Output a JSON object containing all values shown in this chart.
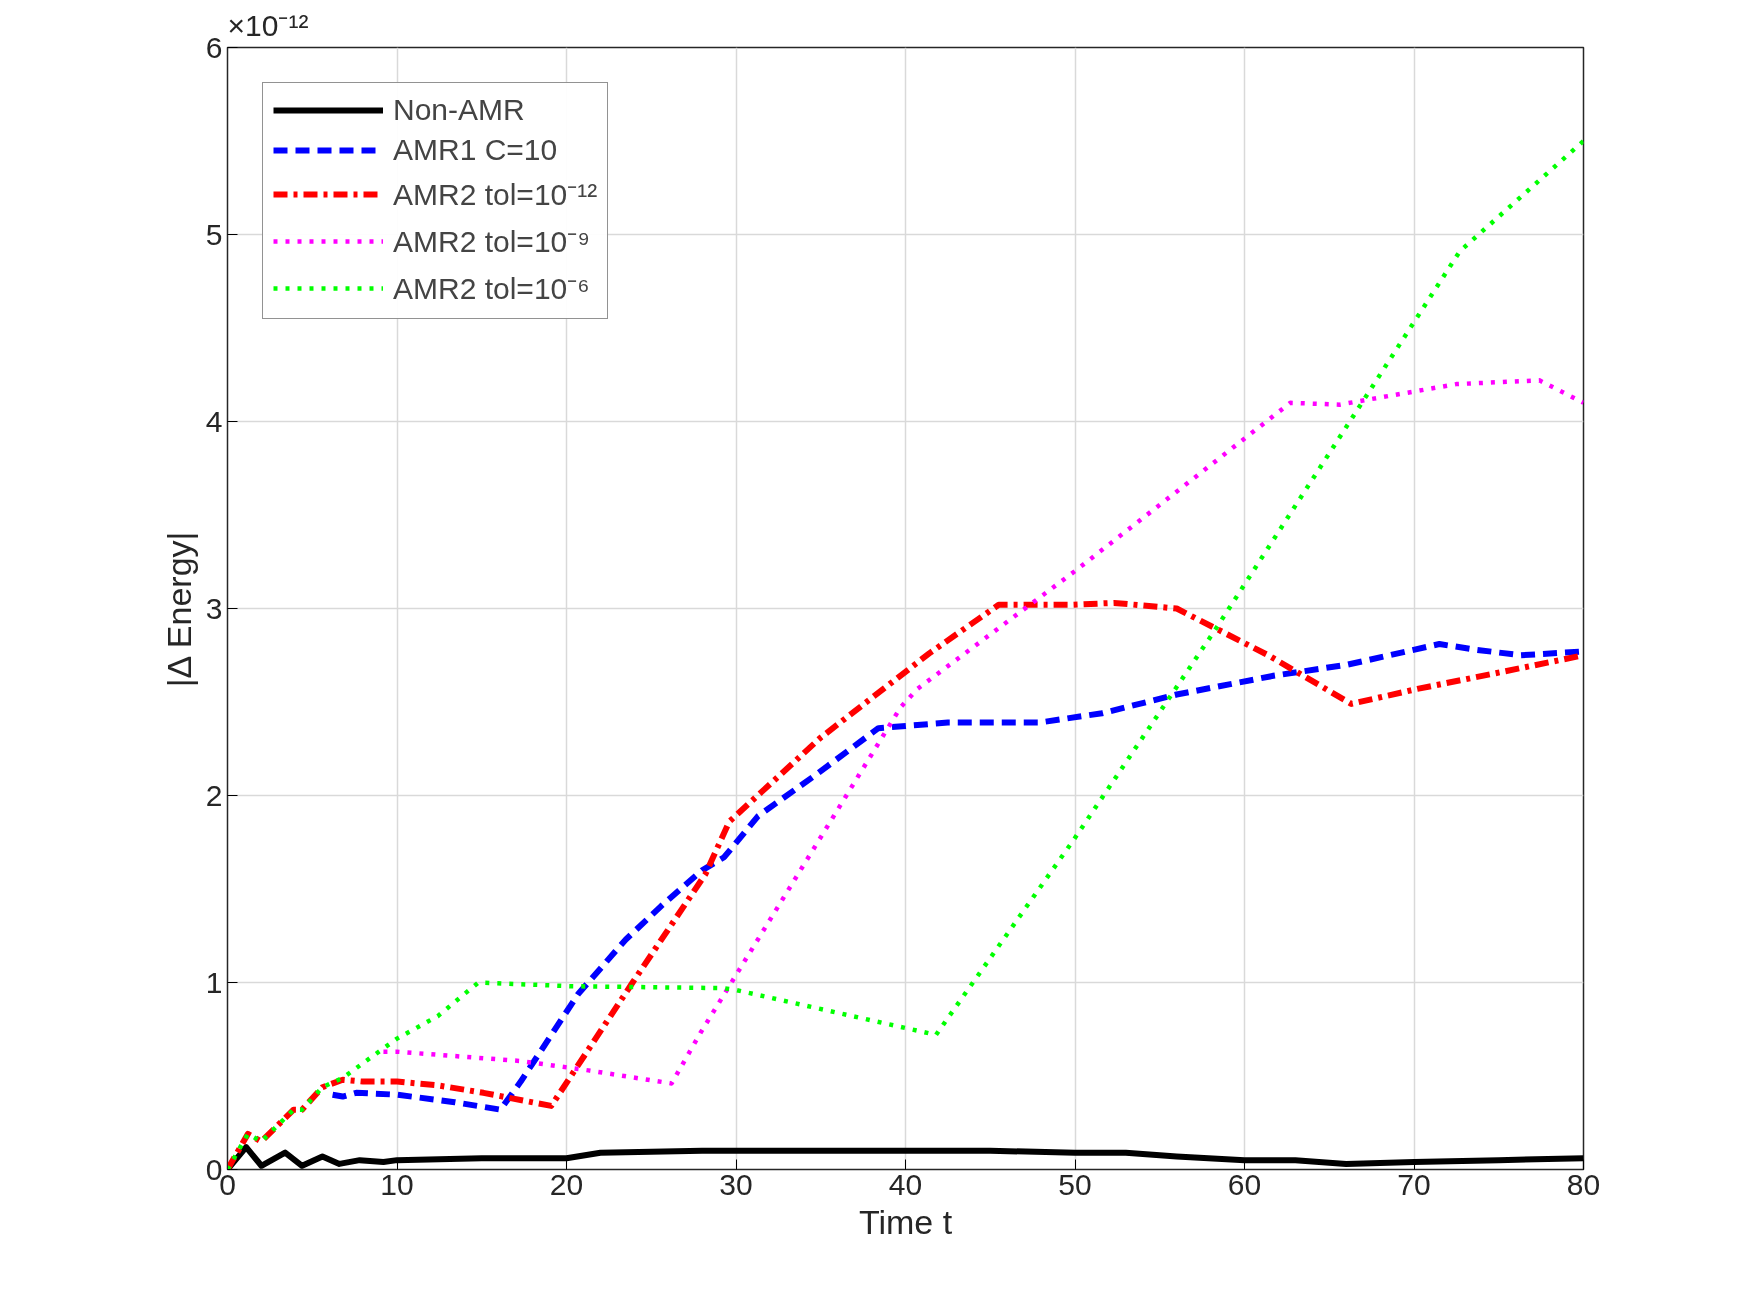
{
  "chart_data": {
    "type": "line",
    "xlabel": "Time t",
    "ylabel": "|Δ Energy|",
    "annotations": [
      "×10⁻¹²"
    ],
    "xlim": [
      0,
      80
    ],
    "xticks": [
      0,
      10,
      20,
      30,
      40,
      50,
      60,
      70,
      80
    ],
    "ylim": [
      0,
      6
    ],
    "yticks": [
      0,
      1,
      2,
      3,
      4,
      5,
      6
    ],
    "grid": true,
    "legend": "top left",
    "series": [
      {
        "name": "Non-AMR",
        "color": "#000000",
        "line_style": "solid",
        "x": [
          0,
          1.1,
          2,
          3.4,
          4.4,
          5.6,
          6.6,
          7.8,
          9.2,
          10,
          15,
          20,
          22,
          28,
          30,
          35,
          40,
          45,
          50,
          53,
          56,
          60,
          63,
          66,
          70,
          75,
          80
        ],
        "values": [
          0,
          0.12,
          0.02,
          0.09,
          0.02,
          0.07,
          0.03,
          0.05,
          0.04,
          0.05,
          0.06,
          0.06,
          0.09,
          0.1,
          0.1,
          0.1,
          0.1,
          0.1,
          0.09,
          0.09,
          0.07,
          0.05,
          0.05,
          0.03,
          0.04,
          0.05,
          0.06
        ]
      },
      {
        "name": "AMR1 C=10",
        "color": "#0000ff",
        "line_style": "dashed",
        "x": [
          6.2,
          6.8,
          7.6,
          10,
          13.4,
          16.1,
          17.3,
          20.7,
          23.5,
          25.6,
          28,
          29.3,
          31.3,
          34.7,
          38.4,
          42.5,
          47.9,
          51.6,
          56,
          61.7,
          66.1,
          71.5,
          73.6,
          76.3,
          80
        ],
        "values": [
          0.4,
          0.39,
          0.41,
          0.4,
          0.36,
          0.32,
          0.47,
          0.94,
          1.23,
          1.41,
          1.6,
          1.67,
          1.89,
          2.11,
          2.36,
          2.39,
          2.39,
          2.44,
          2.54,
          2.64,
          2.7,
          2.81,
          2.78,
          2.75,
          2.77
        ]
      },
      {
        "name": "AMR2 tol=10⁻¹²",
        "color": "#ff0000",
        "line_style": "dashdot",
        "x": [
          0,
          1.2,
          2,
          3.9,
          4.4,
          5.6,
          6.8,
          8,
          10,
          12.4,
          15.1,
          19.1,
          23.9,
          28.2,
          29.6,
          35,
          41.4,
          45.5,
          49.9,
          52.3,
          56,
          61.4,
          66.3,
          70.2,
          74.6,
          80
        ],
        "values": [
          0,
          0.19,
          0.15,
          0.32,
          0.32,
          0.44,
          0.48,
          0.47,
          0.47,
          0.45,
          0.41,
          0.34,
          1.0,
          1.58,
          1.86,
          2.31,
          2.76,
          3.02,
          3.02,
          3.03,
          3.0,
          2.75,
          2.49,
          2.57,
          2.65,
          2.75
        ]
      },
      {
        "name": "AMR2 tol=10⁻⁹",
        "color": "#ff00ff",
        "line_style": "dotted",
        "x": [
          9.2,
          10,
          17.3,
          21.3,
          26.2,
          27.9,
          39.7,
          40.7,
          50,
          62.7,
          65.6,
          72.5,
          77.4,
          80
        ],
        "values": [
          0.63,
          0.63,
          0.58,
          0.53,
          0.46,
          0.73,
          2.47,
          2.57,
          3.2,
          4.1,
          4.09,
          4.2,
          4.22,
          4.1
        ]
      },
      {
        "name": "AMR2 tol=10⁻⁶",
        "color": "#00ff00",
        "line_style": "dotted",
        "x": [
          0,
          1.2,
          2,
          3.9,
          4.4,
          5.6,
          6.8,
          10,
          12.4,
          14.8,
          20.3,
          29.2,
          30,
          41.8,
          49.9,
          58.3,
          72.7,
          80
        ],
        "values": [
          0,
          0.19,
          0.15,
          0.32,
          0.32,
          0.44,
          0.49,
          0.7,
          0.82,
          1.0,
          0.98,
          0.97,
          0.96,
          0.72,
          1.76,
          2.89,
          4.91,
          5.5
        ]
      }
    ]
  }
}
